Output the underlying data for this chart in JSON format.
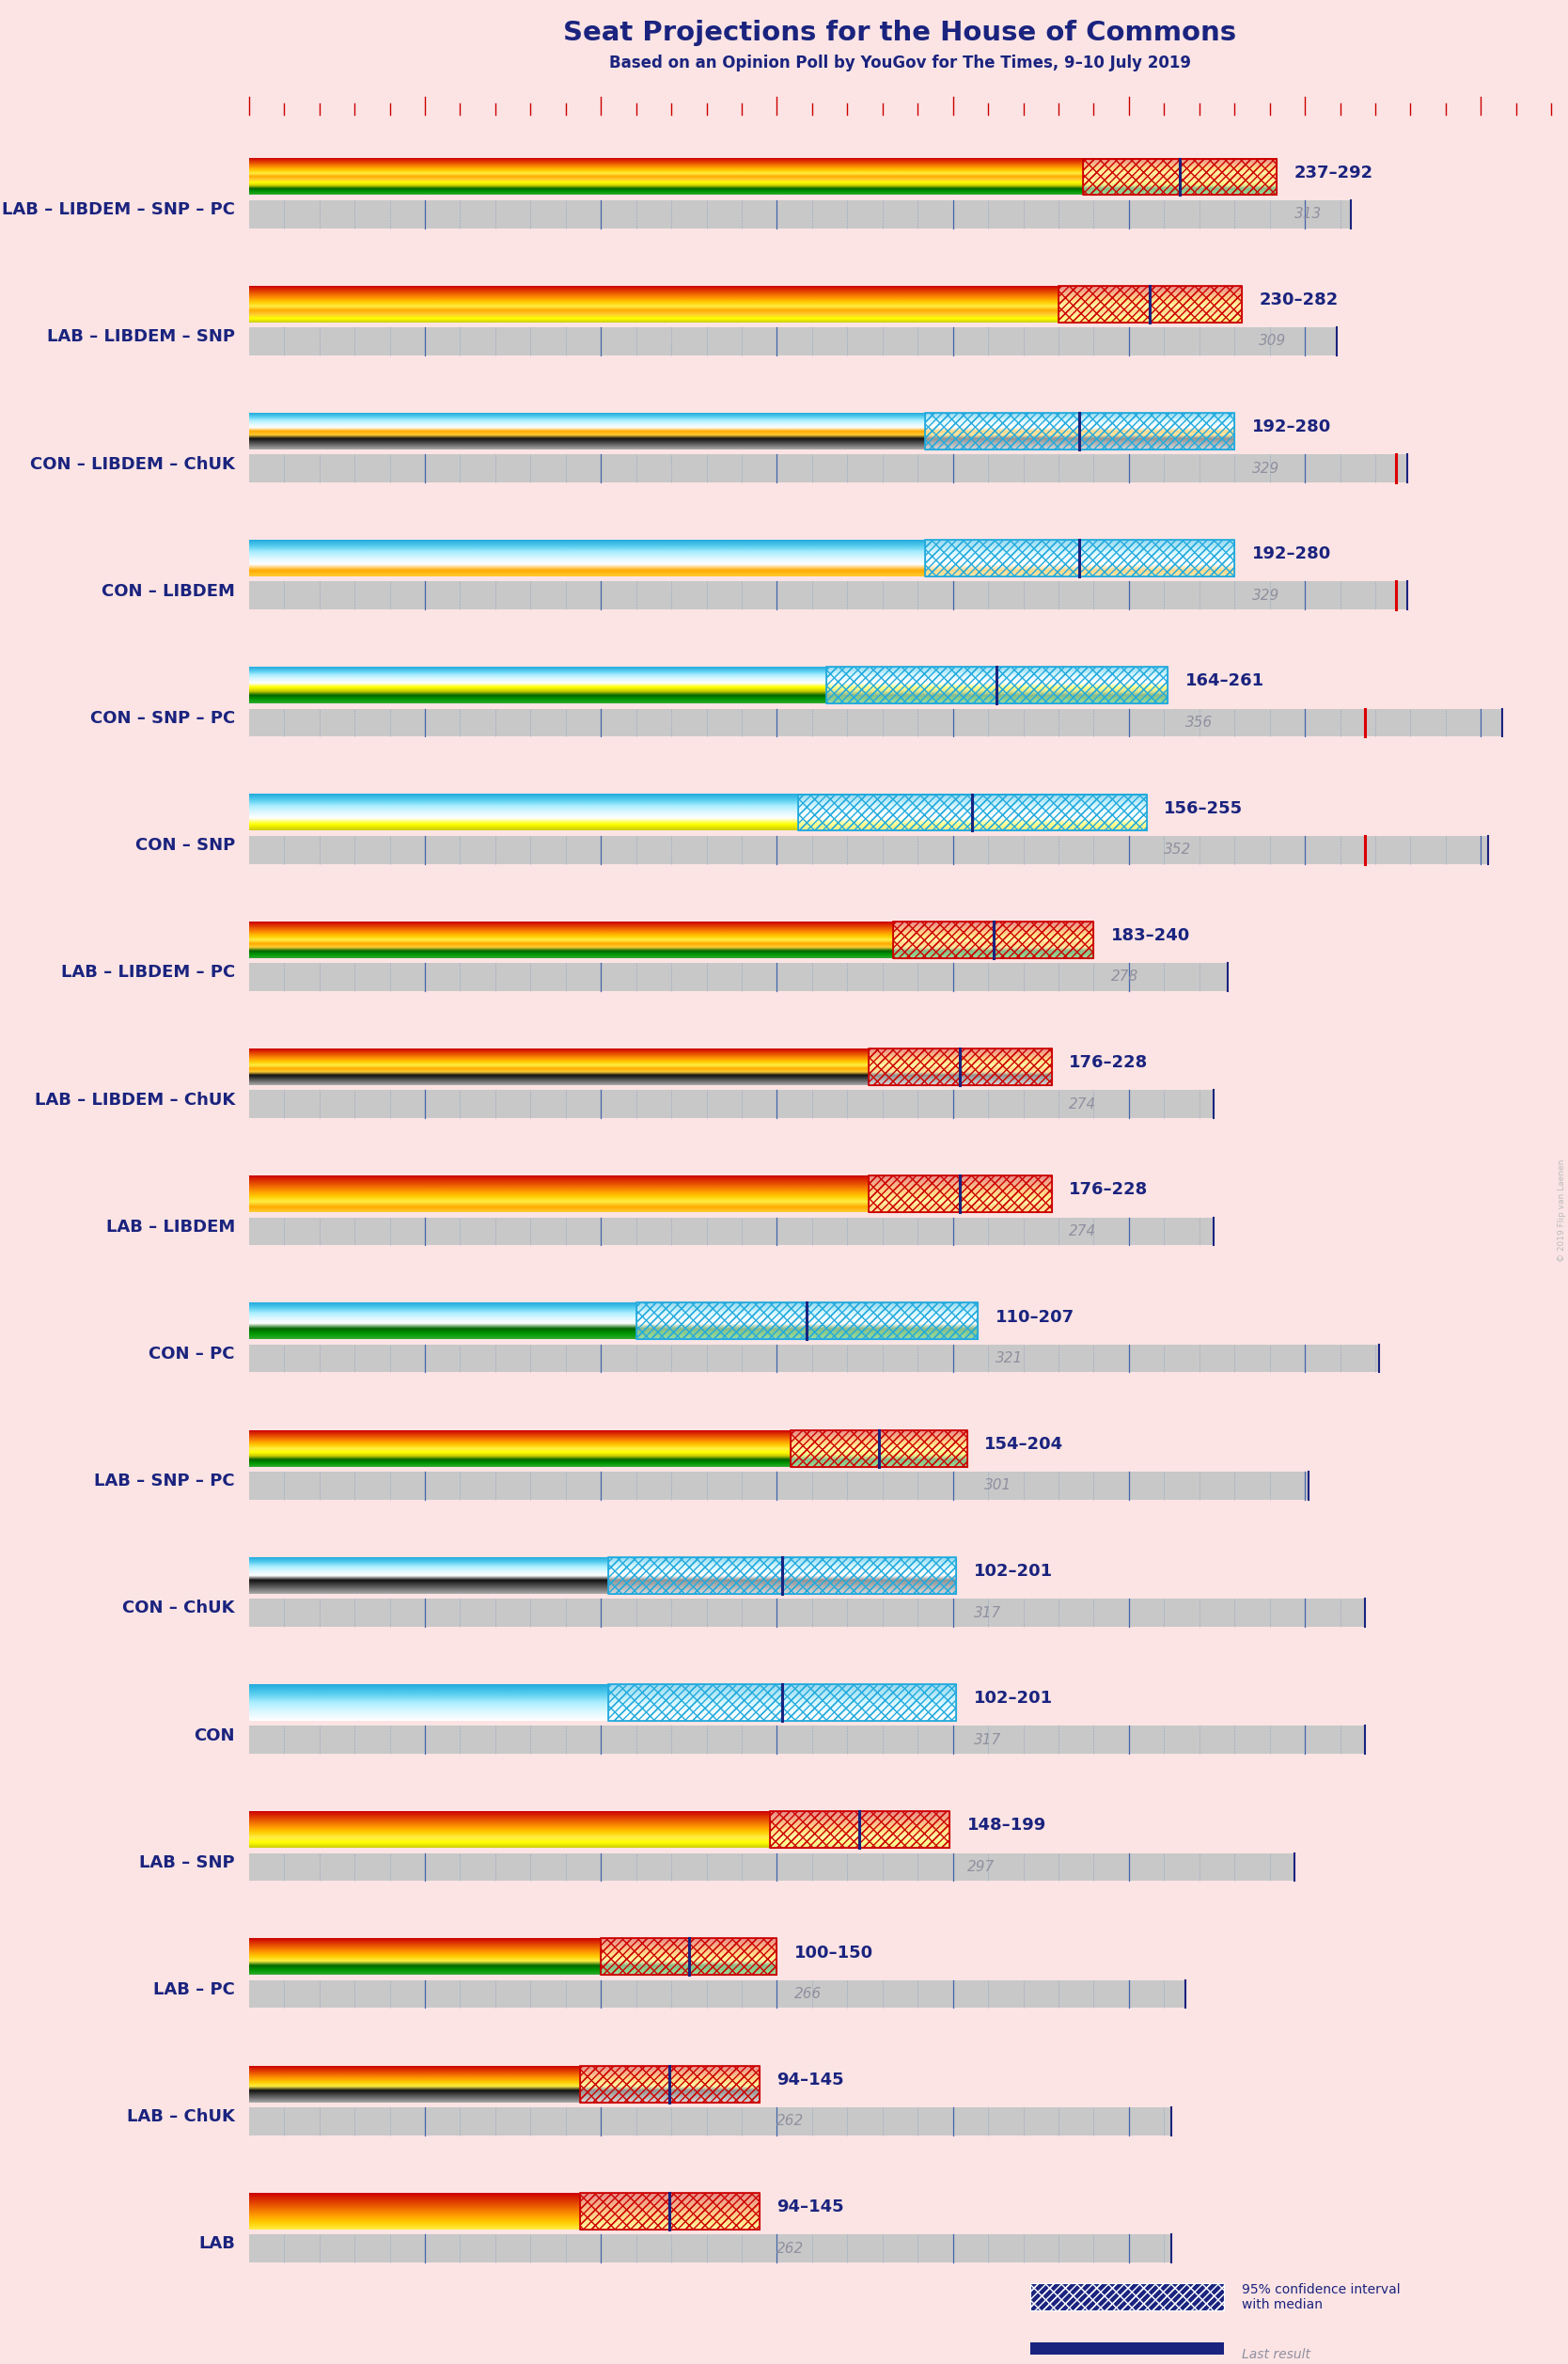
{
  "title": "Seat Projections for the House of Commons",
  "subtitle": "Based on an Opinion Poll by YouGov for The Times, 9–10 July 2019",
  "watermark": "© 2019 Flip van Laenen",
  "background": "#fce4e4",
  "dark_blue": "#1a237e",
  "gray_bar": "#c8c8c8",
  "last_num_color": "#9090a0",
  "majority": 326,
  "seat_max": 370,
  "coalitions": [
    {
      "label": "LAB – LIBDEM – SNP – PC",
      "low": 237,
      "high": 292,
      "last": 313,
      "parties": [
        "LAB",
        "LIBDEM",
        "SNP",
        "PC"
      ],
      "red_line": null
    },
    {
      "label": "LAB – LIBDEM – SNP",
      "low": 230,
      "high": 282,
      "last": 309,
      "parties": [
        "LAB",
        "LIBDEM",
        "SNP"
      ],
      "red_line": null
    },
    {
      "label": "CON – LIBDEM – ChUK",
      "low": 192,
      "high": 280,
      "last": 329,
      "parties": [
        "CON",
        "LIBDEM",
        "ChUK"
      ],
      "red_line": 326
    },
    {
      "label": "CON – LIBDEM",
      "low": 192,
      "high": 280,
      "last": 329,
      "parties": [
        "CON",
        "LIBDEM"
      ],
      "red_line": 326
    },
    {
      "label": "CON – SNP – PC",
      "low": 164,
      "high": 261,
      "last": 356,
      "parties": [
        "CON",
        "SNP",
        "PC"
      ],
      "red_line": 317
    },
    {
      "label": "CON – SNP",
      "low": 156,
      "high": 255,
      "last": 352,
      "parties": [
        "CON",
        "SNP"
      ],
      "red_line": 317
    },
    {
      "label": "LAB – LIBDEM – PC",
      "low": 183,
      "high": 240,
      "last": 278,
      "parties": [
        "LAB",
        "LIBDEM",
        "PC"
      ],
      "red_line": null
    },
    {
      "label": "LAB – LIBDEM – ChUK",
      "low": 176,
      "high": 228,
      "last": 274,
      "parties": [
        "LAB",
        "LIBDEM",
        "ChUK"
      ],
      "red_line": null
    },
    {
      "label": "LAB – LIBDEM",
      "low": 176,
      "high": 228,
      "last": 274,
      "parties": [
        "LAB",
        "LIBDEM"
      ],
      "red_line": null
    },
    {
      "label": "CON – PC",
      "low": 110,
      "high": 207,
      "last": 321,
      "parties": [
        "CON",
        "PC"
      ],
      "red_line": null
    },
    {
      "label": "LAB – SNP – PC",
      "low": 154,
      "high": 204,
      "last": 301,
      "parties": [
        "LAB",
        "SNP",
        "PC"
      ],
      "red_line": null
    },
    {
      "label": "CON – ChUK",
      "low": 102,
      "high": 201,
      "last": 317,
      "parties": [
        "CON",
        "ChUK"
      ],
      "red_line": null
    },
    {
      "label": "CON",
      "low": 102,
      "high": 201,
      "last": 317,
      "parties": [
        "CON"
      ],
      "red_line": null
    },
    {
      "label": "LAB – SNP",
      "low": 148,
      "high": 199,
      "last": 297,
      "parties": [
        "LAB",
        "SNP"
      ],
      "red_line": null
    },
    {
      "label": "LAB – PC",
      "low": 100,
      "high": 150,
      "last": 266,
      "parties": [
        "LAB",
        "PC"
      ],
      "red_line": null
    },
    {
      "label": "LAB – ChUK",
      "low": 94,
      "high": 145,
      "last": 262,
      "parties": [
        "LAB",
        "ChUK"
      ],
      "red_line": null
    },
    {
      "label": "LAB",
      "low": 94,
      "high": 145,
      "last": 262,
      "parties": [
        "LAB"
      ],
      "red_line": null
    }
  ],
  "party_gradient_colors": {
    "LAB": [
      "#cc0000",
      "#dd3300",
      "#ee6600",
      "#ff9900",
      "#ffcc00",
      "#ffee44"
    ],
    "LIBDEM": [
      "#ffaa00",
      "#ffcc33"
    ],
    "SNP": [
      "#ffff00",
      "#cccc00"
    ],
    "PC": [
      "#006600",
      "#009900",
      "#33aa33"
    ],
    "CON": [
      "#22aadd",
      "#55ccee",
      "#aaeeff",
      "#ddf8ff",
      "#ffffff"
    ],
    "ChUK": [
      "#111111",
      "#444444",
      "#777777",
      "#aaaaaa"
    ]
  },
  "hatch_colors": {
    "LAB": "#cc0000",
    "LIBDEM": "#ffaa00",
    "SNP": "#cccc00",
    "PC": "#006600",
    "CON": "#22aadd",
    "ChUK": "#555555"
  }
}
